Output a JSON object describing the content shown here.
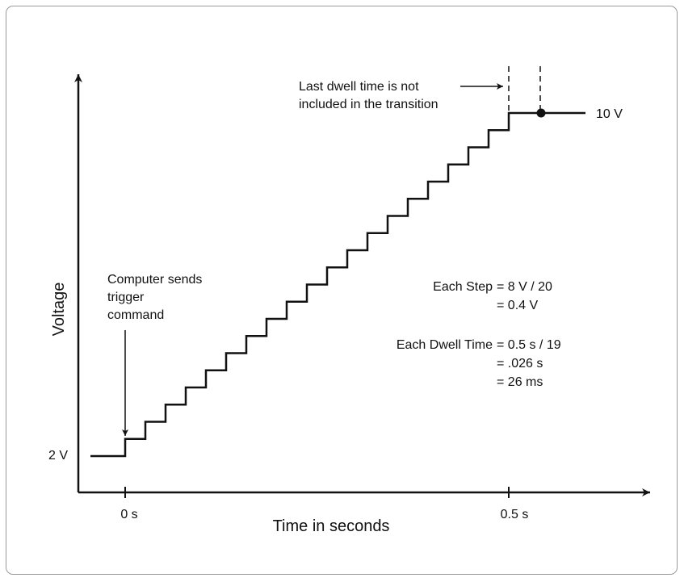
{
  "diagram": {
    "y_axis_label": "Voltage",
    "x_axis_label": "Time in seconds",
    "x_tick_start": "0 s",
    "x_tick_end": "0.5 s",
    "start_level_label": "2 V",
    "end_level_label": "10 V",
    "trigger_note": [
      "Computer sends",
      "trigger",
      "command"
    ],
    "dwell_note": [
      "Last dwell time is not",
      "included in the transition"
    ],
    "step_calc": {
      "title": "Each Step",
      "line1": "= 8 V / 20",
      "line2": "= 0.4 V"
    },
    "dwell_calc": {
      "title": "Each Dwell Time",
      "line1": "= 0.5 s / 19",
      "line2": "= .026 s",
      "line3": "= 26 ms"
    },
    "staircase": {
      "start_voltage": 2,
      "end_voltage": 10,
      "step_count": 20,
      "step_voltage": 0.4,
      "transition_time_s": 0.5,
      "dwell_count": 19
    }
  }
}
